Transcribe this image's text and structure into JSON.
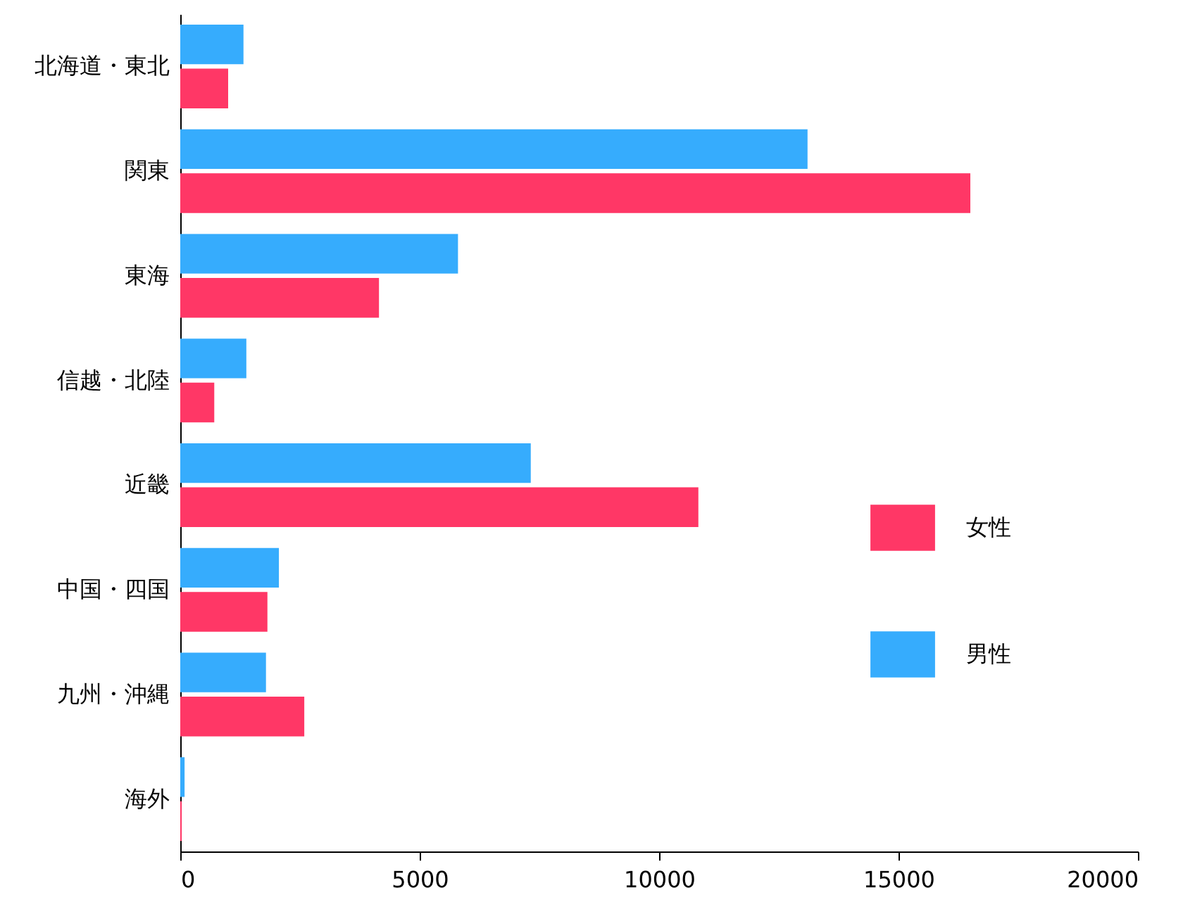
{
  "chart_data": {
    "type": "bar",
    "orientation": "horizontal",
    "categories": [
      "北海道・東北",
      "関東",
      "東海",
      "信越・北陸",
      "近畿",
      "中国・四国",
      "九州・沖縄",
      "海外"
    ],
    "series": [
      {
        "name": "男性",
        "color": "#36acfd",
        "values": [
          1320,
          13100,
          5800,
          1380,
          7320,
          2060,
          1790,
          90
        ]
      },
      {
        "name": "女性",
        "color": "#ff3766",
        "values": [
          1000,
          16500,
          4150,
          710,
          10820,
          1820,
          2590,
          30
        ]
      }
    ],
    "xlim": [
      0,
      20000
    ],
    "xticks": [
      0,
      5000,
      10000,
      15000,
      20000
    ],
    "grid": false,
    "legend": "right"
  }
}
